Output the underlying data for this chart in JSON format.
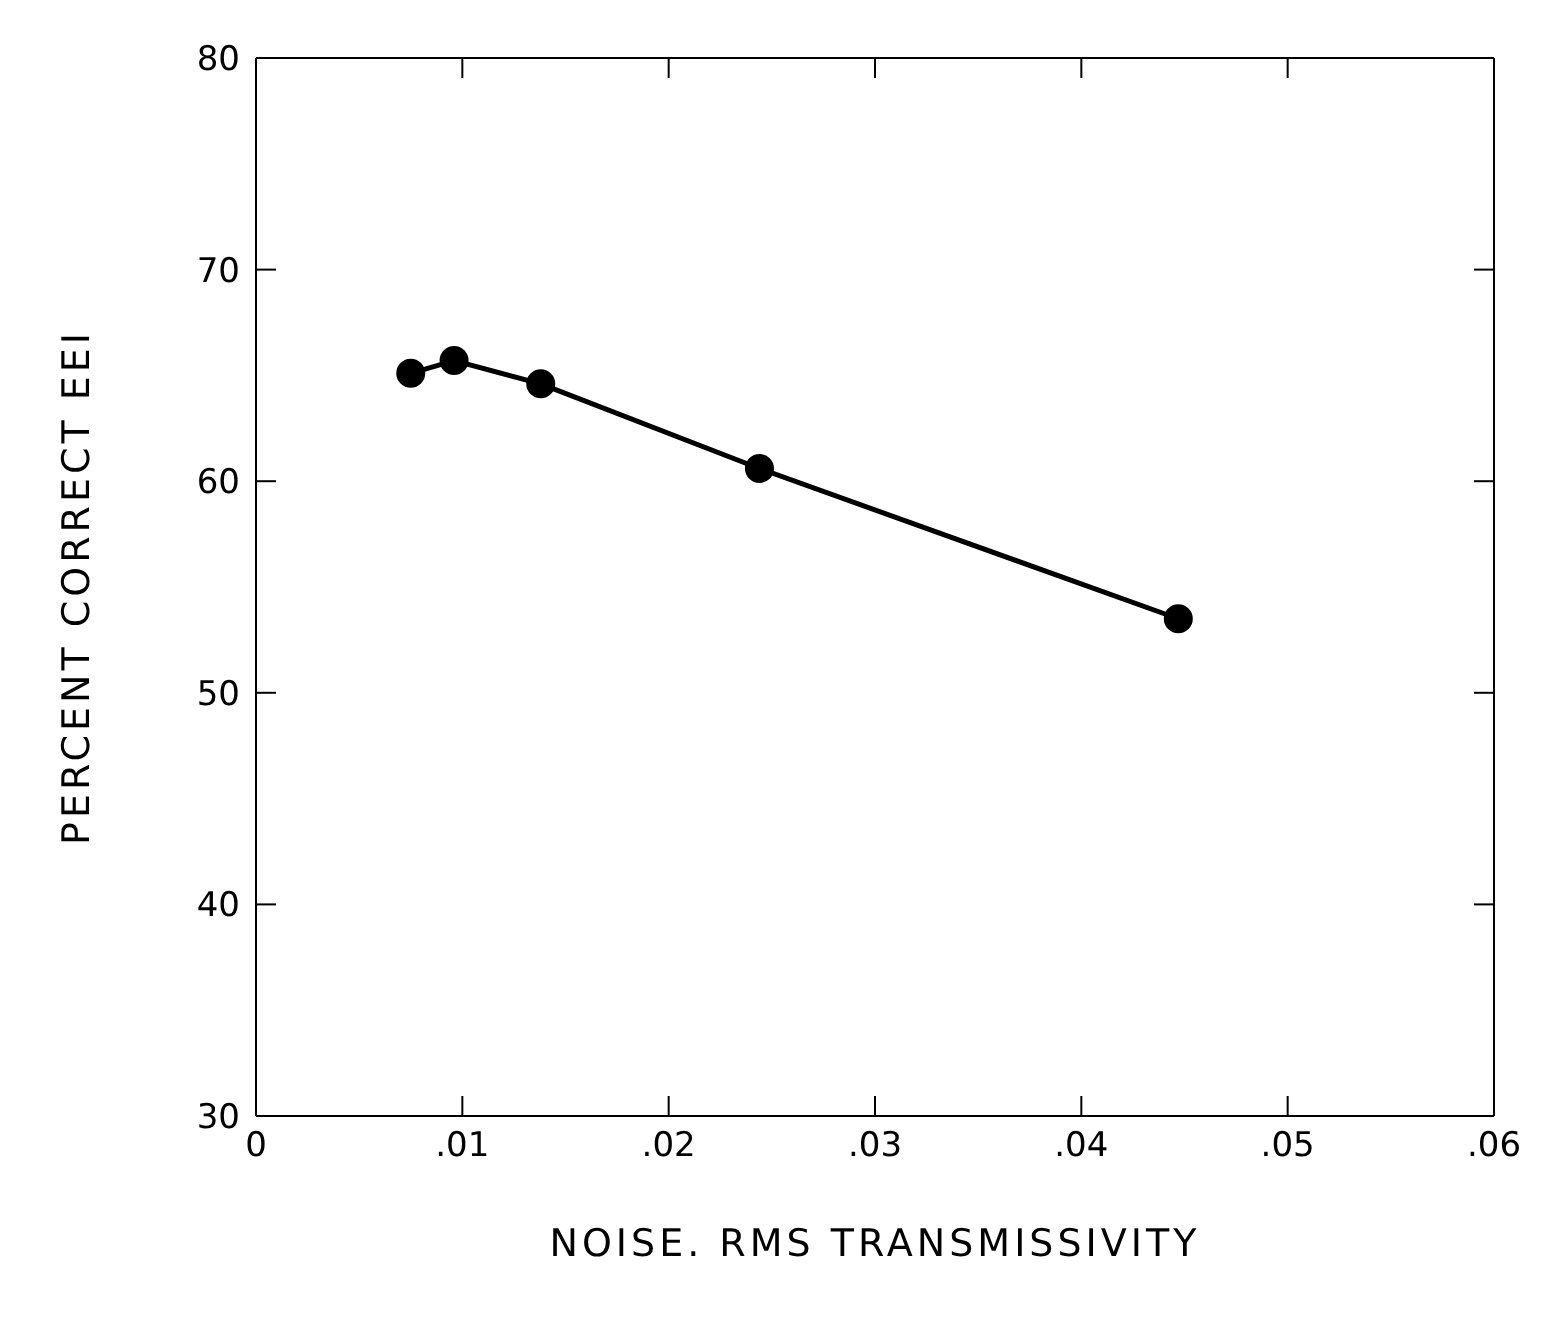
{
  "chart_data": {
    "type": "line",
    "xlabel": "NOISE. RMS TRANSMISSIVITY",
    "ylabel": "PERCENT CORRECT EEI",
    "x": [
      0.0075,
      0.0096,
      0.0138,
      0.0244,
      0.0447
    ],
    "series": [
      {
        "color": "#000000",
        "values": [
          65.1,
          65.7,
          64.6,
          60.6,
          53.5
        ]
      }
    ],
    "xlim": [
      0,
      0.06
    ],
    "xticks": [
      0,
      {
        "value": 0.01,
        "label": ".01"
      },
      {
        "value": 0.02,
        "label": ".02"
      },
      {
        "value": 0.03,
        "label": ".03"
      },
      {
        "value": 0.04,
        "label": ".04"
      },
      {
        "value": 0.05,
        "label": ".05"
      },
      {
        "value": 0.06,
        "label": ".06"
      }
    ],
    "ylim": [
      30,
      80
    ],
    "yticks": [
      30,
      40,
      50,
      60,
      70,
      80
    ],
    "marker": "circle",
    "line_style": "solid",
    "grid": false,
    "legend": false
  }
}
